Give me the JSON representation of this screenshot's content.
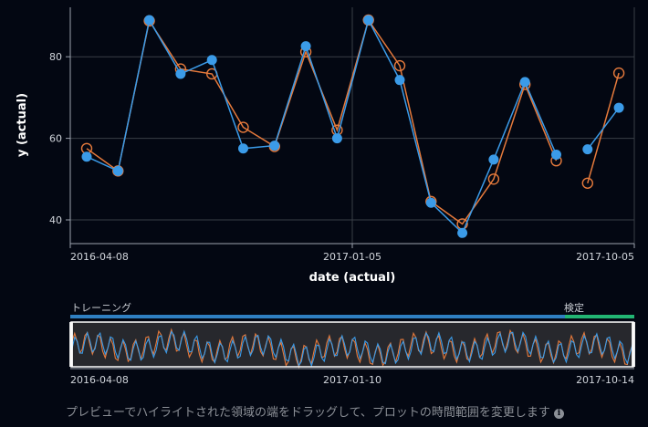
{
  "chart_data": {
    "type": "line",
    "xlabel": "date (actual)",
    "ylabel": "y (actual)",
    "x_ticks": [
      "2016-04-08",
      "2017-01-05",
      "2017-10-05"
    ],
    "y_ticks": [
      40,
      60,
      80
    ],
    "ylim": [
      34,
      91
    ],
    "grid": true,
    "colors": {
      "actual": "#3b9be8",
      "predicted": "#e67a3c"
    },
    "series": [
      {
        "key": "predicted",
        "marker": "hollow-circle",
        "color": "#e67a3c",
        "segments": [
          [
            {
              "x": 0,
              "y": 57.5
            },
            {
              "x": 1,
              "y": 52.0
            },
            {
              "x": 2,
              "y": 88.8
            },
            {
              "x": 3,
              "y": 77.0
            },
            {
              "x": 4,
              "y": 75.8
            },
            {
              "x": 5,
              "y": 62.7
            },
            {
              "x": 6,
              "y": 58.0
            },
            {
              "x": 7,
              "y": 81.2
            },
            {
              "x": 8,
              "y": 62.0
            },
            {
              "x": 9,
              "y": 89.0
            },
            {
              "x": 10,
              "y": 77.8
            },
            {
              "x": 11,
              "y": 44.5
            },
            {
              "x": 12,
              "y": 39.0
            },
            {
              "x": 13,
              "y": 50.0
            },
            {
              "x": 14,
              "y": 73.2
            },
            {
              "x": 15,
              "y": 54.5
            }
          ],
          [
            {
              "x": 16,
              "y": 49.0
            },
            {
              "x": 17,
              "y": 76.0
            }
          ]
        ]
      },
      {
        "key": "actual",
        "marker": "filled-circle",
        "color": "#3b9be8",
        "segments": [
          [
            {
              "x": 0,
              "y": 55.5
            },
            {
              "x": 1,
              "y": 52.0
            },
            {
              "x": 2,
              "y": 89.0
            },
            {
              "x": 3,
              "y": 75.8
            },
            {
              "x": 4,
              "y": 79.2
            },
            {
              "x": 5,
              "y": 57.5
            },
            {
              "x": 6,
              "y": 58.2
            },
            {
              "x": 7,
              "y": 82.6
            },
            {
              "x": 8,
              "y": 60.0
            },
            {
              "x": 9,
              "y": 89.0
            },
            {
              "x": 10,
              "y": 74.3
            },
            {
              "x": 11,
              "y": 44.2
            },
            {
              "x": 12,
              "y": 36.8
            },
            {
              "x": 13,
              "y": 54.8
            },
            {
              "x": 14,
              "y": 73.8
            },
            {
              "x": 15,
              "y": 56.0
            }
          ],
          [
            {
              "x": 16,
              "y": 57.3
            },
            {
              "x": 17,
              "y": 67.5
            }
          ]
        ]
      }
    ]
  },
  "preview": {
    "train_label": "トレーニング",
    "validation_label": "検定",
    "train_fraction": 0.877,
    "x_ticks": [
      "2016-04-08",
      "2017-01-10",
      "2017-10-14"
    ],
    "colors": {
      "train": "#2f7fc1",
      "validation": "#22b573"
    }
  },
  "hint": {
    "text": "プレビューでハイライトされた領域の端をドラッグして、プロットの時間範囲を変更します",
    "icon": "info-icon"
  }
}
